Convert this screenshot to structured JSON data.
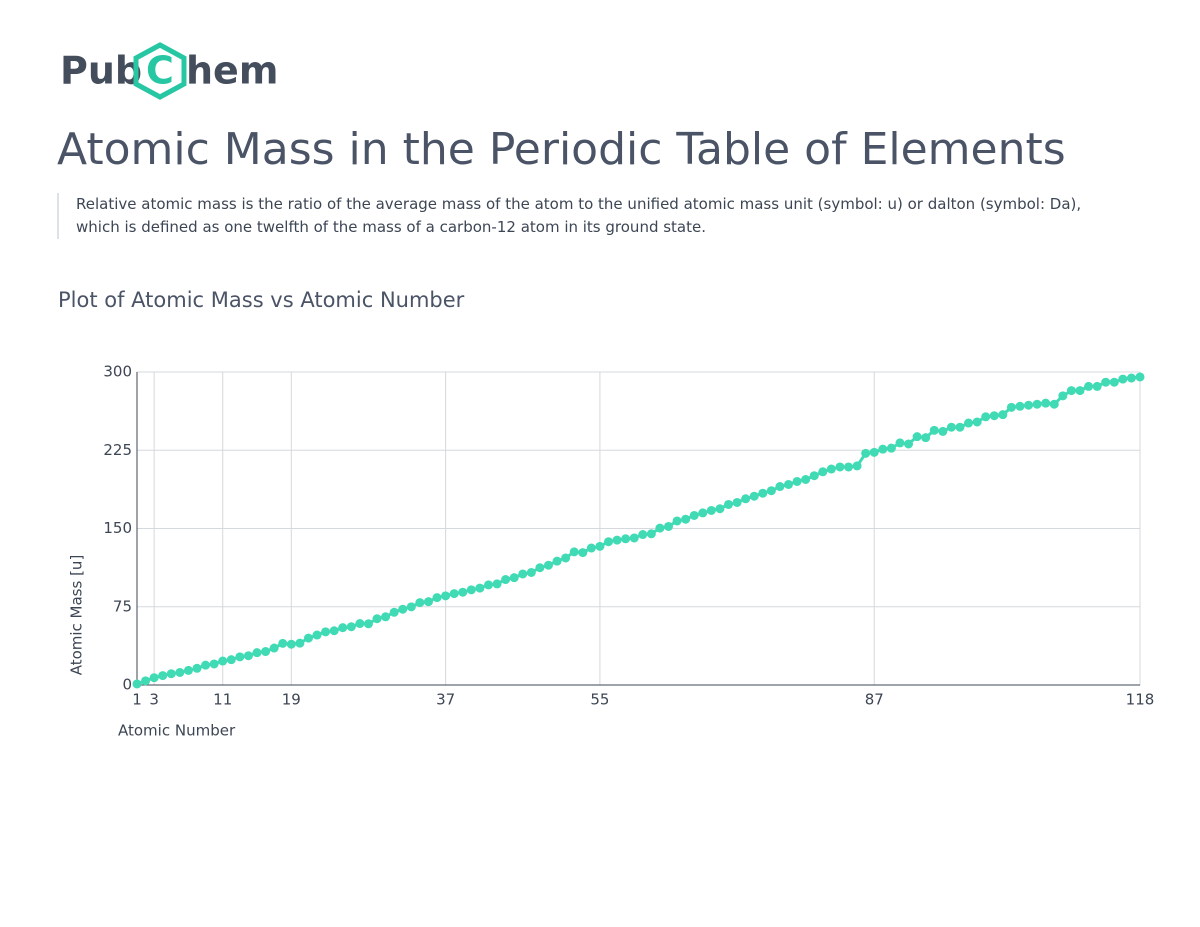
{
  "logo": {
    "left": "Pub",
    "mid": "C",
    "right": "hem"
  },
  "title": "Atomic Mass in the Periodic Table of Elements",
  "description": "Relative atomic mass is the ratio of the average mass of the atom to the unified atomic mass unit (symbol: u) or dalton (symbol: Da), which is defined as one twelfth of the mass of a carbon-12 atom in its ground state.",
  "chart_data": {
    "type": "line",
    "title": "Plot of Atomic Mass vs Atomic Number",
    "x_label": "Atomic Number",
    "y_label": "Atomic Mass [u]",
    "color": "#40dbb4",
    "grid": true,
    "xlim": [
      1,
      118
    ],
    "ylim": [
      0,
      300
    ],
    "xticks": [
      1,
      3,
      11,
      19,
      37,
      55,
      87,
      118
    ],
    "yticks": [
      0,
      75,
      150,
      225,
      300
    ],
    "x": [
      1,
      2,
      3,
      4,
      5,
      6,
      7,
      8,
      9,
      10,
      11,
      12,
      13,
      14,
      15,
      16,
      17,
      18,
      19,
      20,
      21,
      22,
      23,
      24,
      25,
      26,
      27,
      28,
      29,
      30,
      31,
      32,
      33,
      34,
      35,
      36,
      37,
      38,
      39,
      40,
      41,
      42,
      43,
      44,
      45,
      46,
      47,
      48,
      49,
      50,
      51,
      52,
      53,
      54,
      55,
      56,
      57,
      58,
      59,
      60,
      61,
      62,
      63,
      64,
      65,
      66,
      67,
      68,
      69,
      70,
      71,
      72,
      73,
      74,
      75,
      76,
      77,
      78,
      79,
      80,
      81,
      82,
      83,
      84,
      85,
      86,
      87,
      88,
      89,
      90,
      91,
      92,
      93,
      94,
      95,
      96,
      97,
      98,
      99,
      100,
      101,
      102,
      103,
      104,
      105,
      106,
      107,
      108,
      109,
      110,
      111,
      112,
      113,
      114,
      115,
      116,
      117,
      118
    ],
    "values": [
      1.008,
      4.003,
      7.0,
      9.012,
      10.81,
      12.011,
      14.007,
      15.999,
      18.998,
      20.18,
      22.99,
      24.305,
      26.982,
      28.085,
      30.974,
      32.07,
      35.45,
      39.9,
      39.098,
      40.08,
      44.956,
      47.867,
      50.942,
      51.996,
      54.938,
      55.84,
      58.933,
      58.693,
      63.55,
      65.4,
      69.723,
      72.63,
      74.922,
      78.97,
      79.9,
      83.8,
      85.468,
      87.62,
      88.906,
      91.22,
      92.906,
      95.95,
      96.906,
      101.1,
      102.906,
      106.42,
      107.868,
      112.41,
      114.818,
      118.71,
      121.76,
      127.6,
      126.905,
      131.29,
      132.905,
      137.33,
      138.906,
      140.116,
      140.908,
      144.24,
      144.913,
      150.4,
      151.964,
      157.2,
      158.925,
      162.5,
      164.93,
      167.26,
      168.934,
      173.05,
      174.967,
      178.49,
      180.948,
      183.84,
      186.207,
      190.2,
      192.22,
      195.08,
      196.967,
      200.59,
      204.383,
      207.0,
      208.98,
      208.982,
      209.987,
      222.018,
      223.02,
      226.025,
      227.028,
      232.038,
      231.036,
      238.029,
      237.048,
      244.064,
      243.061,
      247.07,
      247.07,
      251.08,
      252.083,
      257.095,
      258.098,
      259.101,
      266.12,
      267.122,
      268.126,
      269.128,
      270.133,
      269.134,
      277.154,
      282.166,
      282.169,
      286.179,
      286.182,
      290.192,
      290.196,
      293.205,
      294.211,
      295.216
    ]
  }
}
